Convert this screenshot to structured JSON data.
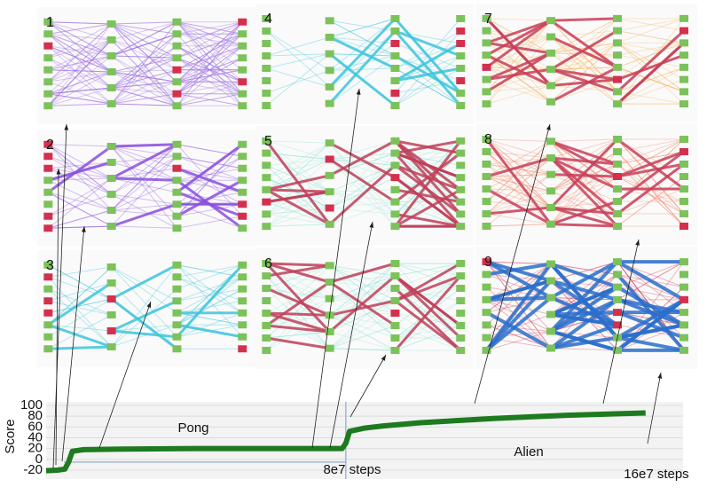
{
  "panels": [
    {
      "label": "1"
    },
    {
      "label": "2"
    },
    {
      "label": "3"
    },
    {
      "label": "4"
    },
    {
      "label": "5"
    },
    {
      "label": "6"
    },
    {
      "label": "7"
    },
    {
      "label": "8"
    },
    {
      "label": "9"
    }
  ],
  "chart_data": {
    "type": "line",
    "y_label": "Score",
    "annotations": [
      "Pong",
      "Alien",
      "8e7 steps",
      "16e7 steps"
    ],
    "x": [
      0,
      0.3,
      0.5,
      0.6,
      0.7,
      1,
      2,
      4,
      6,
      7.9,
      8,
      8.1,
      8.5,
      9,
      10,
      11,
      12,
      13,
      14,
      15,
      16
    ],
    "series": [
      {
        "name": "score",
        "color": "#1e7a1e",
        "values": [
          -21,
          -20,
          -18,
          -5,
          15,
          18,
          19,
          20,
          20,
          20,
          30,
          52,
          58,
          62,
          68,
          72,
          76,
          79,
          82,
          84,
          86
        ]
      }
    ],
    "xlim": [
      0,
      17
    ],
    "ylim": [
      -20,
      100
    ],
    "yticks": [
      -20,
      0,
      20,
      40,
      60,
      80,
      100
    ],
    "grid": true
  }
}
